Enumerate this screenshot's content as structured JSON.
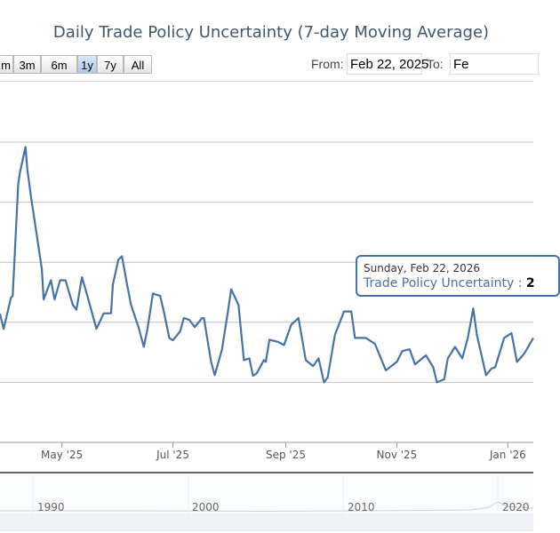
{
  "title": "Daily Trade Policy Uncertainty (7-day Moving Average)",
  "range_selector": {
    "buttons": [
      "m",
      "3m",
      "6m",
      "1y",
      "7y",
      "All"
    ],
    "selected": "1y",
    "from_label": "From:",
    "from_value": "Feb 22, 2025",
    "to_label": "To:",
    "to_value": "Fe"
  },
  "tooltip": {
    "date": "Sunday, Feb 22, 2026",
    "series": "Trade Policy Uncertainty :",
    "value": "2"
  },
  "navigator": {
    "tick_labels": [
      "1990",
      "2000",
      "2010",
      "2020"
    ]
  },
  "colors": {
    "series": "#4572A7",
    "grid": "#C0C0C0",
    "title": "#3E576F"
  },
  "chart_data": {
    "type": "line",
    "title": "Daily Trade Policy Uncertainty (7-day Moving Average)",
    "series_name": "Trade Policy Uncertainty",
    "x_tick_labels": [
      "May '25",
      "Jul '25",
      "Sep '25",
      "Nov '25",
      "Jan '26"
    ],
    "x_ticks": [
      "2025-05-01",
      "2025-07-01",
      "2025-09-01",
      "2025-11-01",
      "2026-01-01"
    ],
    "xlim": [
      "2025-03-28",
      "2026-01-15"
    ],
    "y_tick_labels_visible": false,
    "y_units": "gridline intervals (axis labels not shown)",
    "ylim": [
      0,
      5
    ],
    "grid": true,
    "points": [
      [
        "2025-03-28",
        2.14
      ],
      [
        "2025-03-30",
        1.89
      ],
      [
        "2025-04-03",
        2.41
      ],
      [
        "2025-04-04",
        2.44
      ],
      [
        "2025-04-07",
        4.3
      ],
      [
        "2025-04-08",
        4.5
      ],
      [
        "2025-04-11",
        4.92
      ],
      [
        "2025-04-12",
        4.55
      ],
      [
        "2025-04-14",
        4.1
      ],
      [
        "2025-04-18",
        3.29
      ],
      [
        "2025-04-20",
        2.88
      ],
      [
        "2025-04-21",
        2.38
      ],
      [
        "2025-04-25",
        2.7
      ],
      [
        "2025-04-27",
        2.38
      ],
      [
        "2025-04-30",
        2.7
      ],
      [
        "2025-05-03",
        2.7
      ],
      [
        "2025-05-07",
        2.29
      ],
      [
        "2025-05-09",
        2.21
      ],
      [
        "2025-05-12",
        2.75
      ],
      [
        "2025-05-15",
        2.44
      ],
      [
        "2025-05-20",
        1.89
      ],
      [
        "2025-05-24",
        2.15
      ],
      [
        "2025-05-28",
        2.15
      ],
      [
        "2025-05-29",
        2.63
      ],
      [
        "2025-06-01",
        3.04
      ],
      [
        "2025-06-03",
        3.1
      ],
      [
        "2025-06-06",
        2.6
      ],
      [
        "2025-06-08",
        2.29
      ],
      [
        "2025-06-12",
        1.93
      ],
      [
        "2025-06-15",
        1.59
      ],
      [
        "2025-06-17",
        1.89
      ],
      [
        "2025-06-20",
        2.48
      ],
      [
        "2025-06-24",
        2.44
      ],
      [
        "2025-06-26",
        2.18
      ],
      [
        "2025-06-29",
        1.74
      ],
      [
        "2025-07-01",
        1.7
      ],
      [
        "2025-07-05",
        1.85
      ],
      [
        "2025-07-07",
        2.07
      ],
      [
        "2025-07-10",
        2.04
      ],
      [
        "2025-07-13",
        1.92
      ],
      [
        "2025-07-17",
        2.07
      ],
      [
        "2025-07-18",
        2.07
      ],
      [
        "2025-07-22",
        1.34
      ],
      [
        "2025-07-24",
        1.12
      ],
      [
        "2025-07-28",
        1.55
      ],
      [
        "2025-07-31",
        2.14
      ],
      [
        "2025-08-02",
        2.55
      ],
      [
        "2025-08-06",
        2.29
      ],
      [
        "2025-08-09",
        1.37
      ],
      [
        "2025-08-12",
        1.4
      ],
      [
        "2025-08-14",
        1.11
      ],
      [
        "2025-08-16",
        1.15
      ],
      [
        "2025-08-20",
        1.37
      ],
      [
        "2025-08-21",
        1.34
      ],
      [
        "2025-08-23",
        1.71
      ],
      [
        "2025-08-28",
        1.67
      ],
      [
        "2025-08-31",
        1.62
      ],
      [
        "2025-09-04",
        1.96
      ],
      [
        "2025-09-08",
        2.07
      ],
      [
        "2025-09-12",
        1.37
      ],
      [
        "2025-09-16",
        1.27
      ],
      [
        "2025-09-19",
        1.4
      ],
      [
        "2025-09-22",
        1.0
      ],
      [
        "2025-09-24",
        1.08
      ],
      [
        "2025-09-28",
        1.79
      ],
      [
        "2025-10-03",
        2.18
      ],
      [
        "2025-10-07",
        2.18
      ],
      [
        "2025-10-09",
        1.74
      ],
      [
        "2025-10-15",
        1.74
      ],
      [
        "2025-10-20",
        1.64
      ],
      [
        "2025-10-26",
        1.2
      ],
      [
        "2025-11-01",
        1.34
      ],
      [
        "2025-11-04",
        1.52
      ],
      [
        "2025-11-08",
        1.55
      ],
      [
        "2025-11-11",
        1.3
      ],
      [
        "2025-11-17",
        1.45
      ],
      [
        "2025-11-21",
        1.25
      ],
      [
        "2025-11-23",
        1.0
      ],
      [
        "2025-11-27",
        1.05
      ],
      [
        "2025-11-29",
        1.4
      ],
      [
        "2025-12-03",
        1.59
      ],
      [
        "2025-12-07",
        1.4
      ],
      [
        "2025-12-10",
        1.74
      ],
      [
        "2025-12-13",
        2.23
      ],
      [
        "2025-12-15",
        1.79
      ],
      [
        "2025-12-20",
        1.12
      ],
      [
        "2025-12-23",
        1.23
      ],
      [
        "2025-12-25",
        1.25
      ],
      [
        "2025-12-30",
        1.74
      ],
      [
        "2026-01-03",
        1.82
      ],
      [
        "2026-01-06",
        1.34
      ],
      [
        "2026-01-10",
        1.48
      ],
      [
        "2026-01-15",
        1.74
      ]
    ]
  }
}
